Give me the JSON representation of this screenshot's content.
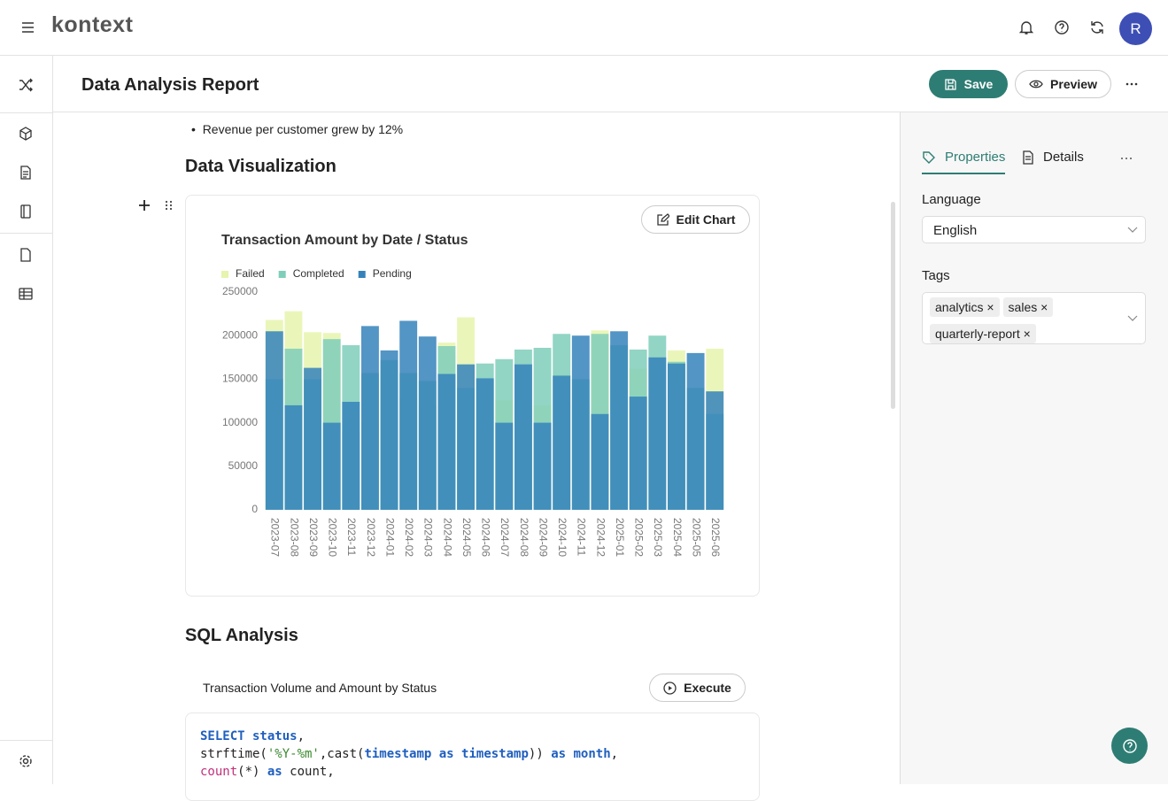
{
  "app": {
    "logo": "kontext",
    "avatar": "R"
  },
  "header": {
    "title": "Data Analysis Report",
    "save": "Save",
    "preview": "Preview"
  },
  "content": {
    "bullet": "Revenue per customer grew by 12%",
    "viz_heading": "Data Visualization",
    "edit_chart": "Edit Chart",
    "sql_heading": "SQL Analysis",
    "sql_title": "Transaction Volume and Amount by Status",
    "execute": "Execute",
    "sql_lines": [
      [
        "SELECT status",
        ","
      ],
      [
        "strftime(",
        "'%Y-%m'",
        ",cast(",
        "timestamp as timestamp",
        ")) ",
        "as month",
        ","
      ],
      [
        "count",
        "(*) ",
        "as",
        " count,"
      ]
    ]
  },
  "panel": {
    "tabs": [
      "Properties",
      "Details"
    ],
    "language_label": "Language",
    "language": "English",
    "tags_label": "Tags",
    "tags": [
      "analytics",
      "sales",
      "quarterly-report"
    ]
  },
  "chart_data": {
    "type": "bar",
    "title": "Transaction Amount by Date / Status",
    "legend": "top-left",
    "categories": [
      "2023-07",
      "2023-08",
      "2023-09",
      "2023-10",
      "2023-11",
      "2023-12",
      "2024-01",
      "2024-02",
      "2024-03",
      "2024-04",
      "2024-05",
      "2024-06",
      "2024-07",
      "2024-08",
      "2024-09",
      "2024-10",
      "2024-11",
      "2024-12",
      "2025-01",
      "2025-02",
      "2025-03",
      "2025-04",
      "2025-05",
      "2025-06"
    ],
    "series": [
      {
        "name": "Failed",
        "color": "#e6f4ad",
        "values": [
          218000,
          228000,
          204000,
          203000,
          90000,
          100000,
          160000,
          130000,
          120000,
          192000,
          221000,
          150000,
          126000,
          120000,
          120000,
          155000,
          120000,
          206000,
          140000,
          162000,
          130000,
          183000,
          120000,
          185000
        ]
      },
      {
        "name": "Completed",
        "color": "#7fceba",
        "values": [
          150000,
          185000,
          150000,
          196000,
          189000,
          157000,
          172000,
          157000,
          148000,
          188000,
          140000,
          168000,
          173000,
          184000,
          186000,
          202000,
          150000,
          202000,
          189000,
          184000,
          200000,
          170000,
          140000,
          110000
        ]
      },
      {
        "name": "Pending",
        "color": "#3582bb",
        "values": [
          205000,
          120000,
          163000,
          100000,
          124000,
          211000,
          183000,
          217000,
          199000,
          156000,
          167000,
          151000,
          100000,
          167000,
          100000,
          154000,
          200000,
          110000,
          205000,
          130000,
          175000,
          168000,
          180000,
          136000
        ]
      }
    ],
    "ylim": [
      0,
      250000
    ],
    "yticks": [
      0,
      50000,
      100000,
      150000,
      200000,
      250000
    ],
    "grid": false
  }
}
